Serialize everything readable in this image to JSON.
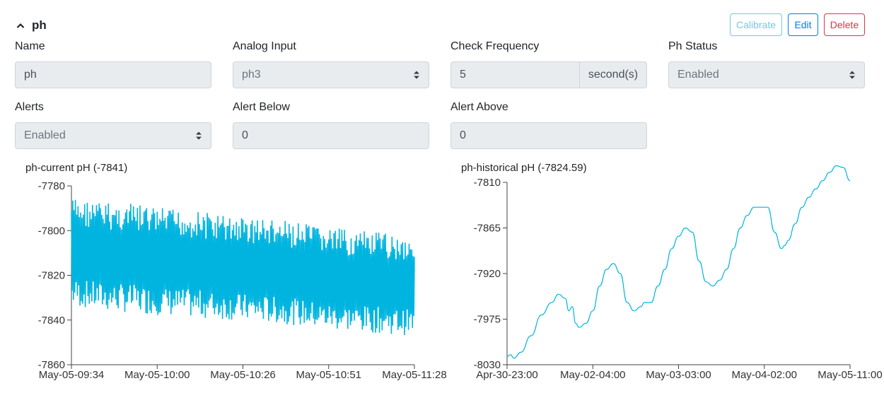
{
  "sensor": {
    "title": "ph",
    "buttons": {
      "calibrate": "Calibrate",
      "edit": "Edit",
      "delete": "Delete"
    }
  },
  "form": {
    "name": {
      "label": "Name",
      "value": "ph"
    },
    "analog_input": {
      "label": "Analog Input",
      "value": "ph3"
    },
    "check_frequency": {
      "label": "Check Frequency",
      "value": "5",
      "unit": "second(s)"
    },
    "ph_status": {
      "label": "Ph Status",
      "value": "Enabled"
    },
    "alerts": {
      "label": "Alerts",
      "value": "Enabled"
    },
    "alert_below": {
      "label": "Alert Below",
      "value": "0"
    },
    "alert_above": {
      "label": "Alert Above",
      "value": "0"
    }
  },
  "colors": {
    "line": "#00b4e0",
    "calibrate": "#5bc0de",
    "edit": "#007bff",
    "delete": "#dc3545"
  },
  "chart_data": [
    {
      "type": "line",
      "title": "ph-current pH (-7841)",
      "ylim": [
        -7860,
        -7780
      ],
      "yticks": [
        -7780,
        -7800,
        -7820,
        -7840,
        -7860
      ],
      "xticks": [
        "May-05-09:34",
        "May-05-10:00",
        "May-05-10:26",
        "May-05-10:51",
        "May-05-11:28"
      ],
      "series": [
        {
          "upper": [
            -7784,
            -7786,
            -7787,
            -7789,
            -7790,
            -7792,
            -7793,
            -7795,
            -7797,
            -7799,
            -7800,
            -7801
          ],
          "lower": [
            -7835,
            -7837,
            -7838,
            -7839,
            -7840,
            -7841,
            -7842,
            -7843,
            -7845,
            -7846,
            -7847,
            -7848
          ]
        }
      ]
    },
    {
      "type": "line",
      "title": "ph-historical pH (-7824.59)",
      "ylim": [
        -8030,
        -7810
      ],
      "yticks": [
        -7810,
        -7865,
        -7920,
        -7975,
        -8030
      ],
      "xticks": [
        "Apr-30-23:00",
        "May-02-04:00",
        "May-03-03:00",
        "May-04-02:00",
        "May-05-11:00"
      ],
      "series": [
        {
          "x": [
            0,
            0.01,
            0.02,
            0.04,
            0.07,
            0.1,
            0.13,
            0.15,
            0.17,
            0.18,
            0.19,
            0.2,
            0.21,
            0.23,
            0.25,
            0.27,
            0.29,
            0.31,
            0.33,
            0.35,
            0.37,
            0.39,
            0.4,
            0.42,
            0.44,
            0.46,
            0.48,
            0.5,
            0.52,
            0.54,
            0.56,
            0.58,
            0.6,
            0.62,
            0.64,
            0.66,
            0.68,
            0.7,
            0.72,
            0.74,
            0.76,
            0.78,
            0.8,
            0.81,
            0.82,
            0.84,
            0.86,
            0.88,
            0.9,
            0.92,
            0.94,
            0.96,
            0.98,
            1.0
          ],
          "y": [
            -8020,
            -8018,
            -8022,
            -8015,
            -7995,
            -7970,
            -7955,
            -7945,
            -7950,
            -7965,
            -7960,
            -7980,
            -7985,
            -7980,
            -7965,
            -7935,
            -7915,
            -7908,
            -7920,
            -7955,
            -7965,
            -7960,
            -7955,
            -7955,
            -7935,
            -7915,
            -7890,
            -7875,
            -7865,
            -7870,
            -7905,
            -7930,
            -7935,
            -7928,
            -7915,
            -7890,
            -7865,
            -7850,
            -7840,
            -7840,
            -7840,
            -7870,
            -7890,
            -7886,
            -7880,
            -7860,
            -7840,
            -7828,
            -7818,
            -7808,
            -7798,
            -7790,
            -7792,
            -7808
          ]
        }
      ]
    }
  ]
}
